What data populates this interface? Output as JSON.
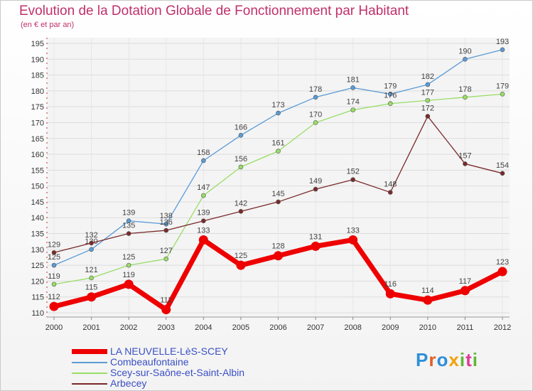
{
  "header": {
    "title": "Evolution de la Dotation Globale de Fonctionnement par Habitant",
    "subtitle": "(en € et par an)"
  },
  "logo": {
    "text": "Proxiti"
  },
  "chart_data": {
    "type": "line",
    "title": "Evolution de la Dotation Globale de Fonctionnement par Habitant",
    "subtitle": "(en € et par an)",
    "xlabel": "",
    "ylabel": "",
    "x": [
      "2000",
      "2001",
      "2002",
      "2003",
      "2004",
      "2005",
      "2006",
      "2007",
      "2008",
      "2009",
      "2010",
      "2011",
      "2012"
    ],
    "ylim": [
      110,
      195
    ],
    "yticks": [
      110,
      115,
      120,
      125,
      130,
      135,
      140,
      145,
      150,
      155,
      160,
      165,
      170,
      175,
      180,
      185,
      190,
      195
    ],
    "grid": true,
    "legend_position": "bottom-left",
    "series": [
      {
        "name": "LA NEUVELLE-LèS-SCEY",
        "color": "#ee0000",
        "values": [
          112,
          115,
          119,
          111,
          133,
          125,
          128,
          131,
          133,
          116,
          114,
          117,
          123
        ]
      },
      {
        "name": "Combeaufontaine",
        "color": "#5b9bd5",
        "values": [
          125,
          130,
          139,
          138,
          158,
          166,
          173,
          178,
          181,
          179,
          182,
          190,
          193
        ]
      },
      {
        "name": "Scey-sur-Saône-et-Saint-Albin",
        "color": "#99dd66",
        "values": [
          119,
          121,
          125,
          127,
          147,
          156,
          161,
          170,
          174,
          176,
          177,
          178,
          179
        ]
      },
      {
        "name": "Arbecey",
        "color": "#7a2a2a",
        "values": [
          129,
          132,
          135,
          136,
          139,
          142,
          145,
          149,
          152,
          148,
          172,
          157,
          154
        ]
      }
    ]
  }
}
